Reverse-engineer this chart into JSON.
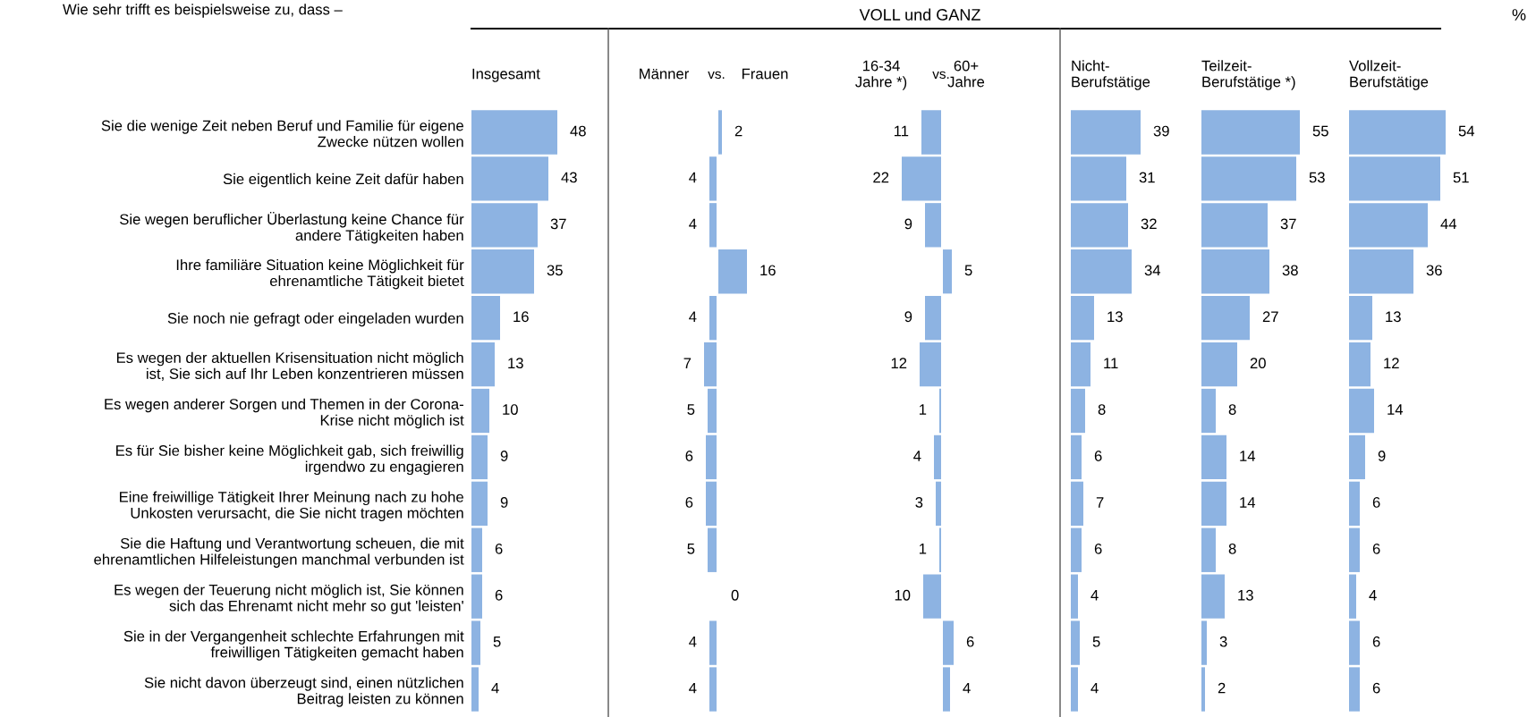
{
  "chart_data": [
    {
      "type": "bar",
      "orientation": "horizontal",
      "title": "Insgesamt",
      "annotations": [
        "Wie sehr trifft es beispielsweise zu, dass –",
        "VOLL und GANZ",
        "%"
      ],
      "tick_labels": "y",
      "data_labels": true,
      "color": "#8db3e2",
      "categories": [
        "Sie die wenige Zeit neben Beruf und Familie für eigene\nZwecke nützen wollen",
        "Sie eigentlich keine Zeit dafür haben",
        "Sie wegen beruflicher Überlastung keine Chance für\nandere Tätigkeiten haben",
        "Ihre familiäre Situation keine Möglichkeit für\nehrenamtliche Tätigkeit bietet",
        "Sie noch nie gefragt oder eingeladen wurden",
        "Es wegen der aktuellen Krisensituation nicht möglich\nist, Sie sich auf Ihr Leben konzentrieren müssen",
        "Es wegen anderer Sorgen und Themen in der Corona-\nKrise nicht möglich ist",
        "Es für Sie bisher keine Möglichkeit gab, sich freiwillig\nirgendwo zu engagieren",
        "Eine freiwillige Tätigkeit Ihrer Meinung nach zu hohe\nUnkosten verursacht, die Sie nicht tragen möchten",
        "Sie die Haftung und Verantwortung scheuen, die mit\nehrenamtlichen Hilfeleistungen manchmal verbunden ist",
        "Es wegen der Teuerung nicht möglich ist, Sie können\nsich das Ehrenamt nicht mehr so gut 'leisten'",
        "Sie in der Vergangenheit schlechte Erfahrungen mit\nfreiwilligen Tätigkeiten gemacht haben",
        "Sie nicht davon überzeugt sind, einen nützlichen\nBeitrag leisten zu können"
      ],
      "values": [
        48,
        43,
        37,
        35,
        16,
        13,
        10,
        9,
        9,
        6,
        6,
        5,
        4
      ]
    },
    {
      "type": "bar",
      "orientation": "horizontal",
      "title": "Männer",
      "annotations": [
        "vs."
      ],
      "xlim": [
        7,
        0
      ],
      "tick_labels": false,
      "data_labels": true,
      "color": "#8db3e2",
      "categories": [
        null,
        null,
        null,
        null,
        null,
        null,
        null,
        null,
        null,
        null,
        null,
        null,
        null
      ],
      "values": [
        null,
        4,
        4,
        null,
        4,
        7,
        5,
        6,
        6,
        5,
        null,
        4,
        4
      ]
    },
    {
      "type": "bar",
      "orientation": "horizontal",
      "title": "Frauen",
      "tick_labels": false,
      "data_labels": true,
      "color": "#8db3e2",
      "categories": [
        null,
        null,
        null,
        null,
        null,
        null,
        null,
        null,
        null,
        null,
        null,
        null,
        null
      ],
      "values": [
        2,
        null,
        null,
        16,
        null,
        null,
        null,
        null,
        null,
        null,
        0,
        null,
        null
      ]
    },
    {
      "type": "bar",
      "orientation": "horizontal",
      "title": "16-34\nJahre *)",
      "annotations": [
        "vs."
      ],
      "xlim": [
        22,
        0
      ],
      "tick_labels": false,
      "data_labels": true,
      "color": "#8db3e2",
      "categories": [
        null,
        null,
        null,
        null,
        null,
        null,
        null,
        null,
        null,
        null,
        null,
        null,
        null
      ],
      "values": [
        11,
        22,
        9,
        null,
        9,
        12,
        1,
        4,
        3,
        1,
        10,
        null,
        null
      ]
    },
    {
      "type": "bar",
      "orientation": "horizontal",
      "title": "60+\nJahre",
      "tick_labels": false,
      "data_labels": true,
      "color": "#8db3e2",
      "categories": [
        null,
        null,
        null,
        null,
        null,
        null,
        null,
        null,
        null,
        null,
        null,
        null,
        null
      ],
      "values": [
        null,
        null,
        null,
        5,
        null,
        null,
        null,
        null,
        null,
        null,
        null,
        6,
        4
      ]
    },
    {
      "type": "bar",
      "orientation": "horizontal",
      "title": "Nicht-\nBerufstätige",
      "tick_labels": false,
      "data_labels": true,
      "color": "#8db3e2",
      "categories": [
        null,
        null,
        null,
        null,
        null,
        null,
        null,
        null,
        null,
        null,
        null,
        null,
        null
      ],
      "values": [
        39,
        31,
        32,
        34,
        13,
        11,
        8,
        6,
        7,
        6,
        4,
        5,
        4
      ]
    },
    {
      "type": "bar",
      "orientation": "horizontal",
      "title": "Teilzeit-\nBerufstätige *)",
      "tick_labels": false,
      "data_labels": true,
      "color": "#8db3e2",
      "categories": [
        null,
        null,
        null,
        null,
        null,
        null,
        null,
        null,
        null,
        null,
        null,
        null,
        null
      ],
      "values": [
        55,
        53,
        37,
        38,
        27,
        20,
        8,
        14,
        14,
        8,
        13,
        3,
        2
      ]
    },
    {
      "type": "bar",
      "orientation": "horizontal",
      "title": "Vollzeit-\nBerufstätige",
      "tick_labels": false,
      "data_labels": true,
      "color": "#8db3e2",
      "categories": [
        null,
        null,
        null,
        null,
        null,
        null,
        null,
        null,
        null,
        null,
        null,
        null,
        null
      ],
      "values": [
        54,
        51,
        44,
        36,
        13,
        12,
        14,
        9,
        6,
        6,
        4,
        6,
        6
      ]
    }
  ]
}
